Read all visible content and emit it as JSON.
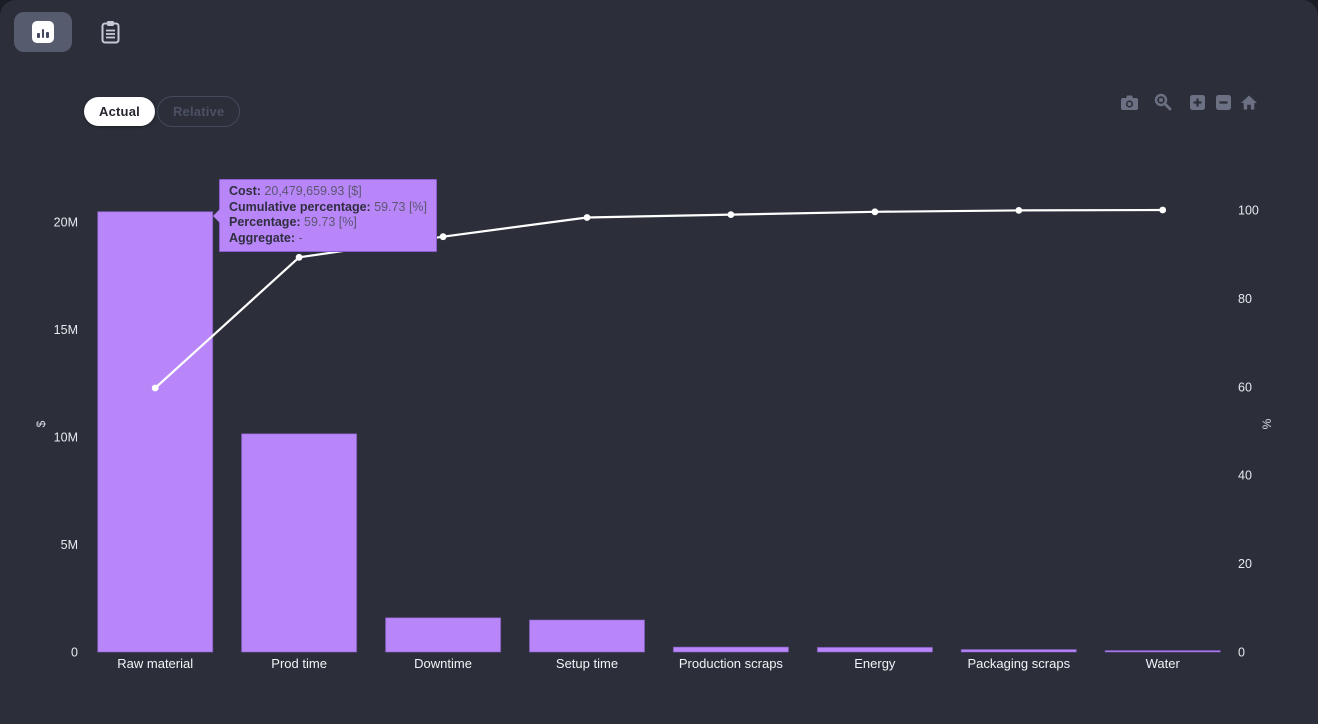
{
  "app": {
    "background": "#2c2f39",
    "outer_background": "#1b1d25",
    "accent_purple": "#b886f8",
    "line_color": "#ffffff",
    "tick_color": "#e8e9ee",
    "modebar_color": "#6b7183"
  },
  "toolbar": {
    "chart_view_button": {
      "icon": "bar-chart-icon",
      "selected": true
    },
    "report_button": {
      "icon": "clipboard-icon",
      "selected": false
    }
  },
  "view_toggle": {
    "options": [
      {
        "label": "Actual",
        "selected": true
      },
      {
        "label": "Relative",
        "selected": false
      }
    ]
  },
  "modebar": {
    "icons": [
      "camera-icon",
      "zoom-magnifier-icon",
      "zoom-in-icon",
      "zoom-out-icon",
      "reset-home-icon"
    ]
  },
  "tooltip": {
    "rows": [
      {
        "label": "Cost",
        "value": "20,479,659.93 [$]"
      },
      {
        "label": "Cumulative percentage",
        "value": "59.73 [%]"
      },
      {
        "label": "Percentage",
        "value": "59.73 [%]"
      },
      {
        "label": "Aggregate",
        "value": "-"
      }
    ]
  },
  "chart_data": {
    "type": "bar",
    "subtype": "pareto",
    "title": "",
    "categories": [
      "Raw material",
      "Prod time",
      "Downtime",
      "Setup time",
      "Production scraps",
      "Energy",
      "Packaging scraps",
      "Water"
    ],
    "series": [
      {
        "name": "Cost",
        "type": "bar",
        "unit": "$",
        "axis": "left",
        "color": "#b886f8",
        "values": [
          20479659.93,
          10150000,
          1590000,
          1490000,
          230000,
          215000,
          110000,
          42000
        ]
      },
      {
        "name": "Cumulative percentage",
        "type": "line",
        "unit": "%",
        "axis": "right",
        "color": "#ffffff",
        "values": [
          59.73,
          89.3,
          93.95,
          98.3,
          98.97,
          99.6,
          99.92,
          100
        ]
      }
    ],
    "left_axis": {
      "title": "$",
      "tick_labels": [
        "0",
        "5M",
        "10M",
        "15M",
        "20M"
      ],
      "tick_values": [
        0,
        5000000,
        10000000,
        15000000,
        20000000
      ],
      "range": [
        0,
        21500000
      ]
    },
    "right_axis": {
      "title": "%",
      "tick_labels": [
        "0",
        "20",
        "40",
        "60",
        "80",
        "100"
      ],
      "tick_values": [
        0,
        20,
        40,
        60,
        80,
        100
      ],
      "range": [
        0,
        104.5
      ]
    },
    "grid": false,
    "legend": false
  }
}
